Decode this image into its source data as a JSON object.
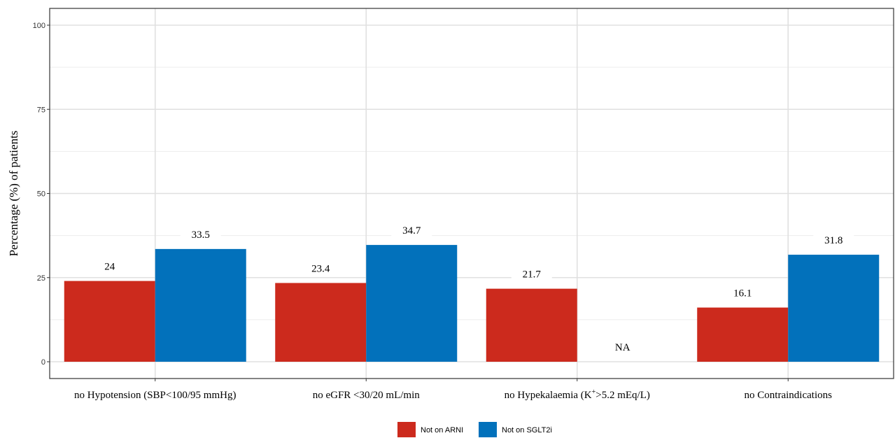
{
  "chart_data": {
    "type": "bar",
    "categories": [
      "no Hypotension (SBP<100/95 mmHg)",
      "no eGFR <30/20 mL/min",
      "no Hypekalaemia (K+>5.2 mEq/L)",
      "no Contraindications"
    ],
    "series": [
      {
        "name": "Not on ARNI",
        "color": "#cc2a1d",
        "values": [
          24,
          23.4,
          21.7,
          16.1
        ],
        "labels": [
          "24",
          "23.4",
          "21.7",
          "16.1"
        ]
      },
      {
        "name": "Not on SGLT2i",
        "color": "#0271bb",
        "values": [
          33.5,
          34.7,
          null,
          31.8
        ],
        "labels": [
          "33.5",
          "34.7",
          "NA",
          "31.8"
        ]
      }
    ],
    "xlabel": "",
    "ylabel": "Percentage (%) of patients",
    "ylim": [
      0,
      105
    ],
    "yticks": [
      "0",
      "25",
      "50",
      "75",
      "100"
    ],
    "grid": true,
    "legend_position": "bottom"
  }
}
